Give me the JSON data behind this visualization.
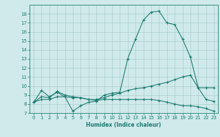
{
  "xlabel": "Humidex (Indice chaleur)",
  "x": [
    0,
    1,
    2,
    3,
    4,
    5,
    6,
    7,
    8,
    9,
    10,
    11,
    12,
    13,
    14,
    15,
    16,
    17,
    18,
    19,
    20,
    21,
    22,
    23
  ],
  "line1": [
    8.2,
    9.5,
    8.8,
    9.3,
    8.8,
    7.2,
    7.8,
    8.2,
    8.3,
    9.0,
    9.2,
    9.3,
    13.0,
    15.2,
    17.3,
    18.2,
    18.3,
    17.0,
    16.8,
    15.2,
    13.2,
    9.8,
    8.5,
    8.3
  ],
  "line2": [
    8.2,
    8.8,
    8.7,
    9.4,
    9.0,
    8.8,
    8.7,
    8.5,
    8.5,
    8.7,
    9.0,
    9.2,
    9.5,
    9.7,
    9.8,
    10.0,
    10.2,
    10.4,
    10.7,
    11.0,
    11.2,
    9.8,
    9.8,
    9.8
  ],
  "line3": [
    8.2,
    8.5,
    8.5,
    8.8,
    8.8,
    8.7,
    8.7,
    8.5,
    8.4,
    8.5,
    8.5,
    8.5,
    8.5,
    8.5,
    8.5,
    8.5,
    8.4,
    8.2,
    8.0,
    7.8,
    7.8,
    7.7,
    7.5,
    7.2
  ],
  "color": "#1a7a6e",
  "bg_color": "#d0eaeb",
  "grid_color": "#aacccc",
  "ylim": [
    7,
    19
  ],
  "xlim": [
    -0.5,
    23.5
  ],
  "yticks": [
    7,
    8,
    9,
    10,
    11,
    12,
    13,
    14,
    15,
    16,
    17,
    18
  ],
  "xticks": [
    0,
    1,
    2,
    3,
    4,
    5,
    6,
    7,
    8,
    9,
    10,
    11,
    12,
    13,
    14,
    15,
    16,
    17,
    18,
    19,
    20,
    21,
    22,
    23
  ]
}
